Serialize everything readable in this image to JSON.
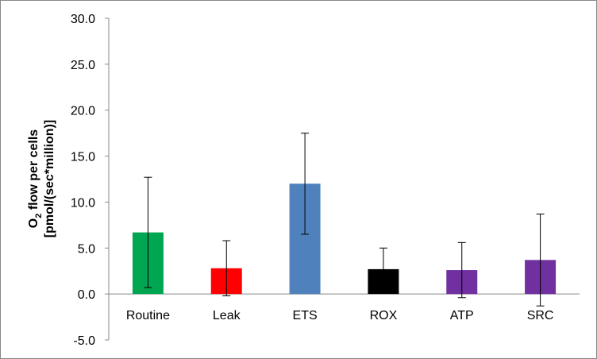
{
  "chart_data": {
    "type": "bar",
    "categories": [
      "Routine",
      "Leak",
      "ETS",
      "ROX",
      "ATP",
      "SRC"
    ],
    "values": [
      6.7,
      2.8,
      12.0,
      2.7,
      2.6,
      3.7
    ],
    "error_bars": [
      6.0,
      3.0,
      5.5,
      2.3,
      3.0,
      5.0
    ],
    "bar_colors": [
      "#00A651",
      "#FF0000",
      "#4F81BD",
      "#000000",
      "#7030A0",
      "#7030A0"
    ],
    "ylabel_line1_main": "O",
    "ylabel_line1_sub": "2",
    "ylabel_line1_rest": " flow per cells",
    "ylabel_line2": "[pmol/(sec*million)]",
    "ylim": [
      -5.0,
      30.0
    ],
    "yticks": [
      "30.0",
      "25.0",
      "20.0",
      "15.0",
      "10.0",
      "5.0",
      "0.0",
      "-5.0"
    ],
    "ytick_values": [
      30,
      25,
      20,
      15,
      10,
      5,
      0,
      -5
    ],
    "grid": false
  }
}
